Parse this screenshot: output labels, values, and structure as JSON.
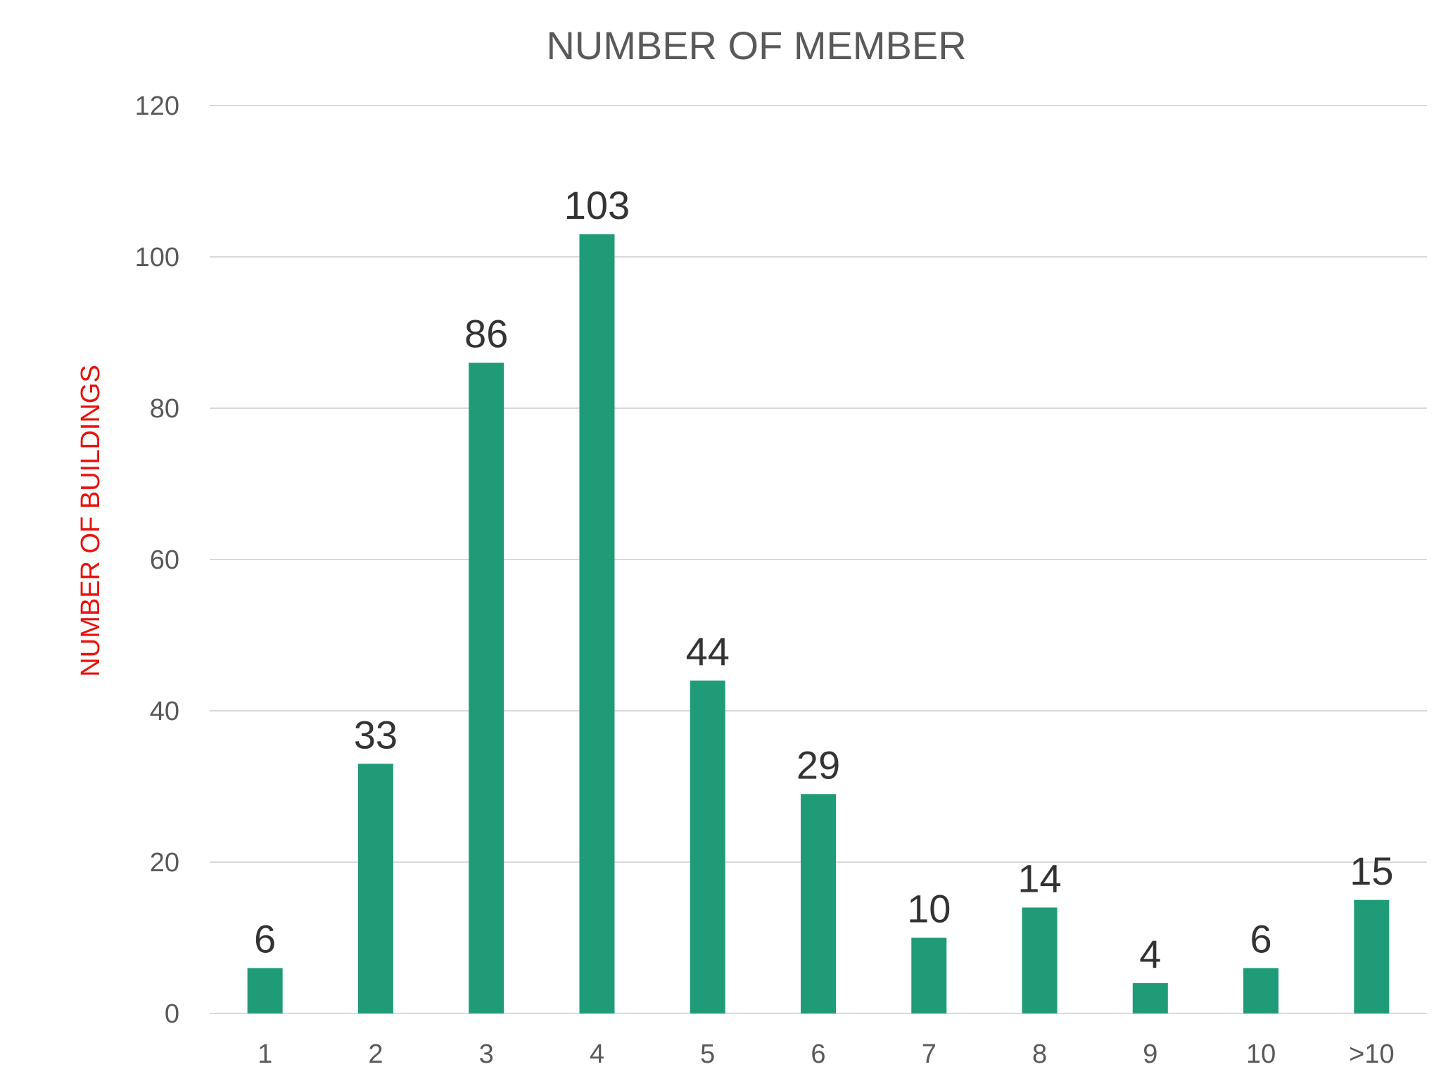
{
  "chart_data": {
    "type": "bar",
    "title": "NUMBER OF MEMBER",
    "xlabel": "",
    "ylabel": "NUMBER OF BUILDINGS",
    "categories": [
      "1",
      "2",
      "3",
      "4",
      "5",
      "6",
      "7",
      "8",
      "9",
      "10",
      ">10"
    ],
    "values": [
      6,
      33,
      86,
      103,
      44,
      29,
      10,
      14,
      4,
      6,
      15
    ],
    "ylim": [
      0,
      120
    ],
    "yticks": [
      "0",
      "20",
      "40",
      "60",
      "80",
      "100",
      "120"
    ],
    "grid": true,
    "legend": "none",
    "data_labels": true,
    "colors": {
      "bar": "#1f9b78",
      "ylabel": "#e8120c",
      "title": "#595959",
      "tick": "#595959",
      "data_label": "#333333",
      "grid": "#d9d9d9"
    }
  }
}
